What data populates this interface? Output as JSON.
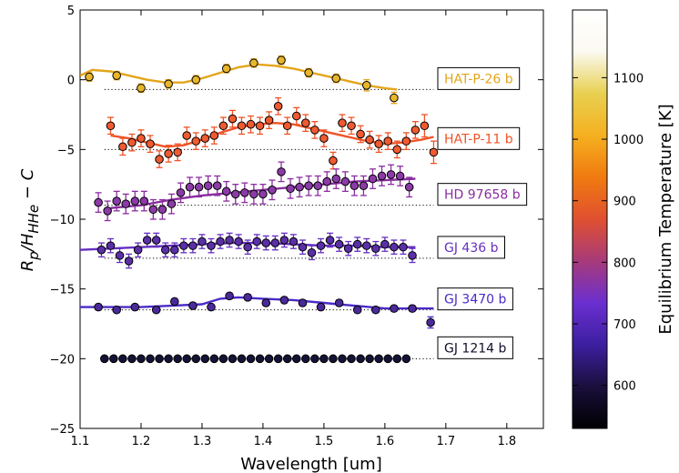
{
  "chart_data": {
    "type": "scatter",
    "xlabel": "Wavelength [um]",
    "ylabel_html": "R_p / H_HHe − C",
    "ylabel_main": "R",
    "ylabel_sub1": "p",
    "ylabel_mid": "/H",
    "ylabel_sub2": "HHe",
    "ylabel_tail": " − C",
    "xlim": [
      1.1,
      1.86
    ],
    "ylim": [
      -25,
      5
    ],
    "x_ticks": [
      "1.1",
      "1.2",
      "1.3",
      "1.4",
      "1.5",
      "1.6",
      "1.7",
      "1.8"
    ],
    "y_ticks": [
      "5",
      "0",
      "−5",
      "−10",
      "−15",
      "−20",
      "−25"
    ],
    "colorbar": {
      "label": "Equilibrium Temperature [K]",
      "range": [
        530,
        1210
      ],
      "ticks": [
        "600",
        "700",
        "800",
        "900",
        "1000",
        "1100"
      ],
      "stops": [
        "#000000",
        "#1a0f3c",
        "#3c1fa0",
        "#6b2fd0",
        "#a73a7a",
        "#e05030",
        "#f07a10",
        "#f5b020",
        "#e8d050",
        "#fbf9f0",
        "#ffffff"
      ]
    },
    "series": [
      {
        "name": "HAT-P-26 b",
        "color": "#e3a51a",
        "point_color": "#e9b62a",
        "offset": -0.7,
        "x": [
          1.115,
          1.16,
          1.2,
          1.245,
          1.29,
          1.34,
          1.385,
          1.43,
          1.475,
          1.52,
          1.57,
          1.615
        ],
        "y": [
          0.2,
          0.3,
          -0.6,
          -0.3,
          0.0,
          0.8,
          1.2,
          1.4,
          0.5,
          0.1,
          -0.4,
          -1.3
        ],
        "err": [
          0.3,
          0.3,
          0.3,
          0.3,
          0.3,
          0.3,
          0.3,
          0.3,
          0.3,
          0.3,
          0.4,
          0.4
        ],
        "model_x": [
          1.1,
          1.12,
          1.15,
          1.18,
          1.21,
          1.24,
          1.27,
          1.3,
          1.33,
          1.36,
          1.39,
          1.42,
          1.45,
          1.48,
          1.51,
          1.54,
          1.57,
          1.6,
          1.62
        ],
        "model_y": [
          0.3,
          0.7,
          0.6,
          0.3,
          0.0,
          -0.2,
          -0.2,
          0.1,
          0.5,
          0.9,
          1.1,
          1.0,
          0.8,
          0.5,
          0.2,
          -0.1,
          -0.4,
          -0.6,
          -0.7
        ]
      },
      {
        "name": "HAT-P-11 b",
        "color": "#ef5326",
        "point_color": "#ef5a30",
        "offset": -5.0,
        "x": [
          1.15,
          1.17,
          1.185,
          1.2,
          1.215,
          1.23,
          1.245,
          1.26,
          1.275,
          1.29,
          1.305,
          1.32,
          1.335,
          1.35,
          1.365,
          1.38,
          1.395,
          1.41,
          1.425,
          1.44,
          1.455,
          1.47,
          1.485,
          1.5,
          1.515,
          1.53,
          1.545,
          1.56,
          1.575,
          1.59,
          1.605,
          1.62,
          1.635,
          1.65,
          1.665,
          1.68
        ],
        "y": [
          -3.3,
          -4.8,
          -4.5,
          -4.2,
          -4.6,
          -5.7,
          -5.3,
          -5.2,
          -4.0,
          -4.4,
          -4.2,
          -4.0,
          -3.3,
          -2.8,
          -3.3,
          -3.2,
          -3.3,
          -2.9,
          -1.9,
          -3.3,
          -2.6,
          -3.1,
          -3.6,
          -4.2,
          -5.8,
          -3.1,
          -3.3,
          -3.9,
          -4.3,
          -4.6,
          -4.4,
          -5.0,
          -4.4,
          -3.6,
          -3.3,
          -5.2
        ],
        "err": [
          0.6,
          0.6,
          0.6,
          0.6,
          0.6,
          0.6,
          0.6,
          0.6,
          0.6,
          0.6,
          0.6,
          0.6,
          0.6,
          0.6,
          0.6,
          0.6,
          0.6,
          0.6,
          0.6,
          0.6,
          0.6,
          0.6,
          0.6,
          0.6,
          0.6,
          0.6,
          0.6,
          0.6,
          0.6,
          0.6,
          0.6,
          0.6,
          0.6,
          0.6,
          0.8,
          0.8
        ],
        "model_x": [
          1.15,
          1.18,
          1.21,
          1.24,
          1.27,
          1.3,
          1.33,
          1.36,
          1.39,
          1.42,
          1.45,
          1.48,
          1.51,
          1.54,
          1.57,
          1.6,
          1.63,
          1.66,
          1.68
        ],
        "model_y": [
          -4.0,
          -4.2,
          -4.5,
          -4.8,
          -4.7,
          -4.3,
          -3.8,
          -3.4,
          -3.2,
          -3.1,
          -3.2,
          -3.5,
          -3.8,
          -4.1,
          -4.4,
          -4.6,
          -4.5,
          -4.3,
          -4.1
        ]
      },
      {
        "name": "HD 97658 b",
        "color": "#8a2da0",
        "point_color": "#8c3aa8",
        "offset": -9.0,
        "x": [
          1.13,
          1.145,
          1.16,
          1.175,
          1.19,
          1.205,
          1.22,
          1.235,
          1.25,
          1.265,
          1.28,
          1.295,
          1.31,
          1.325,
          1.34,
          1.355,
          1.37,
          1.385,
          1.4,
          1.415,
          1.43,
          1.445,
          1.46,
          1.475,
          1.49,
          1.505,
          1.52,
          1.535,
          1.55,
          1.565,
          1.58,
          1.595,
          1.61,
          1.625,
          1.64
        ],
        "y": [
          -8.8,
          -9.4,
          -8.7,
          -8.9,
          -8.7,
          -8.7,
          -9.3,
          -9.3,
          -8.9,
          -8.1,
          -7.7,
          -7.7,
          -7.6,
          -7.6,
          -8.0,
          -8.2,
          -8.1,
          -8.2,
          -8.2,
          -7.9,
          -6.6,
          -7.8,
          -7.7,
          -7.6,
          -7.6,
          -7.3,
          -7.1,
          -7.3,
          -7.6,
          -7.6,
          -7.1,
          -6.9,
          -6.8,
          -6.9,
          -7.7
        ],
        "err": [
          0.7,
          0.7,
          0.7,
          0.7,
          0.7,
          0.7,
          0.7,
          0.7,
          0.7,
          0.7,
          0.7,
          0.7,
          0.7,
          0.7,
          0.7,
          0.7,
          0.7,
          0.7,
          0.7,
          0.7,
          0.7,
          0.7,
          0.7,
          0.7,
          0.7,
          0.7,
          0.7,
          0.7,
          0.7,
          0.7,
          0.7,
          0.7,
          0.7,
          0.7,
          0.7
        ],
        "model_x": [
          1.15,
          1.2,
          1.25,
          1.3,
          1.35,
          1.4,
          1.45,
          1.5,
          1.55,
          1.6,
          1.65
        ],
        "model_y": [
          -9.2,
          -9.0,
          -8.6,
          -8.3,
          -8.1,
          -7.9,
          -7.7,
          -7.5,
          -7.3,
          -7.2,
          -7.1
        ]
      },
      {
        "name": "GJ 436 b",
        "color": "#6530c0",
        "point_color": "#5b2fa8",
        "offset": -12.8,
        "x": [
          1.135,
          1.15,
          1.165,
          1.18,
          1.195,
          1.21,
          1.225,
          1.24,
          1.255,
          1.27,
          1.285,
          1.3,
          1.315,
          1.33,
          1.345,
          1.36,
          1.375,
          1.39,
          1.405,
          1.42,
          1.435,
          1.45,
          1.465,
          1.48,
          1.495,
          1.51,
          1.525,
          1.54,
          1.555,
          1.57,
          1.585,
          1.6,
          1.615,
          1.63,
          1.645
        ],
        "y": [
          -12.2,
          -11.9,
          -12.6,
          -13.0,
          -12.2,
          -11.5,
          -11.5,
          -12.2,
          -12.2,
          -11.9,
          -11.9,
          -11.6,
          -11.9,
          -11.6,
          -11.5,
          -11.6,
          -12.0,
          -11.6,
          -11.7,
          -11.7,
          -11.5,
          -11.6,
          -12.0,
          -12.4,
          -11.9,
          -11.5,
          -11.8,
          -12.1,
          -11.8,
          -11.9,
          -12.1,
          -11.8,
          -12.0,
          -12.0,
          -12.6
        ],
        "err": [
          0.5,
          0.5,
          0.5,
          0.5,
          0.5,
          0.5,
          0.5,
          0.5,
          0.5,
          0.5,
          0.5,
          0.5,
          0.5,
          0.5,
          0.5,
          0.5,
          0.5,
          0.5,
          0.5,
          0.5,
          0.5,
          0.5,
          0.5,
          0.5,
          0.5,
          0.5,
          0.5,
          0.5,
          0.5,
          0.5,
          0.5,
          0.5,
          0.5,
          0.5,
          0.5
        ],
        "model_x": [
          1.1,
          1.15,
          1.2,
          1.25,
          1.3,
          1.35,
          1.4,
          1.45,
          1.5,
          1.55,
          1.6,
          1.65
        ],
        "model_y": [
          -12.2,
          -12.1,
          -12.0,
          -11.9,
          -11.8,
          -11.7,
          -11.7,
          -11.8,
          -11.9,
          -11.9,
          -12.0,
          -12.0
        ]
      },
      {
        "name": "GJ 3470 b",
        "color": "#4a2bc8",
        "point_color": "#4a2a9a",
        "offset": -16.5,
        "x": [
          1.13,
          1.16,
          1.19,
          1.225,
          1.255,
          1.285,
          1.315,
          1.345,
          1.375,
          1.405,
          1.435,
          1.465,
          1.495,
          1.525,
          1.555,
          1.585,
          1.615,
          1.645,
          1.675
        ],
        "y": [
          -16.3,
          -16.5,
          -16.3,
          -16.5,
          -15.9,
          -16.2,
          -16.3,
          -15.5,
          -15.6,
          -16.0,
          -15.8,
          -16.0,
          -16.3,
          -16.0,
          -16.5,
          -16.5,
          -16.4,
          -16.4,
          -17.4
        ],
        "err": [
          0.2,
          0.2,
          0.2,
          0.2,
          0.2,
          0.2,
          0.2,
          0.2,
          0.2,
          0.2,
          0.2,
          0.2,
          0.2,
          0.2,
          0.2,
          0.2,
          0.2,
          0.2,
          0.4
        ],
        "model_x": [
          1.1,
          1.15,
          1.2,
          1.25,
          1.3,
          1.33,
          1.36,
          1.4,
          1.45,
          1.5,
          1.55,
          1.6,
          1.65,
          1.68
        ],
        "model_y": [
          -16.3,
          -16.3,
          -16.3,
          -16.2,
          -16.1,
          -15.7,
          -15.6,
          -15.7,
          -15.8,
          -16.0,
          -16.2,
          -16.4,
          -16.4,
          -16.4
        ]
      },
      {
        "name": "GJ 1214 b",
        "color": "#12102a",
        "point_color": "#151238",
        "offset": -20.0,
        "x": [
          1.14,
          1.155,
          1.17,
          1.185,
          1.2,
          1.215,
          1.23,
          1.245,
          1.26,
          1.275,
          1.29,
          1.305,
          1.32,
          1.335,
          1.35,
          1.365,
          1.38,
          1.395,
          1.41,
          1.425,
          1.44,
          1.455,
          1.47,
          1.485,
          1.5,
          1.515,
          1.53,
          1.545,
          1.56,
          1.575,
          1.59,
          1.605,
          1.62,
          1.635
        ],
        "y": [
          -20.0,
          -20.0,
          -20.0,
          -20.0,
          -20.0,
          -20.0,
          -20.0,
          -20.0,
          -20.0,
          -20.0,
          -20.0,
          -20.0,
          -20.0,
          -20.0,
          -20.0,
          -20.0,
          -20.0,
          -20.0,
          -20.0,
          -20.0,
          -20.0,
          -20.0,
          -20.0,
          -20.0,
          -20.0,
          -20.0,
          -20.0,
          -20.0,
          -20.0,
          -20.0,
          -20.0,
          -20.0,
          -20.0,
          -20.0
        ],
        "err": [
          0.15,
          0.15,
          0.15,
          0.15,
          0.15,
          0.15,
          0.15,
          0.15,
          0.15,
          0.15,
          0.15,
          0.15,
          0.15,
          0.15,
          0.15,
          0.15,
          0.15,
          0.15,
          0.15,
          0.15,
          0.15,
          0.15,
          0.15,
          0.15,
          0.15,
          0.15,
          0.15,
          0.15,
          0.15,
          0.15,
          0.15,
          0.15,
          0.15,
          0.15
        ],
        "model_x": [],
        "model_y": []
      }
    ]
  }
}
